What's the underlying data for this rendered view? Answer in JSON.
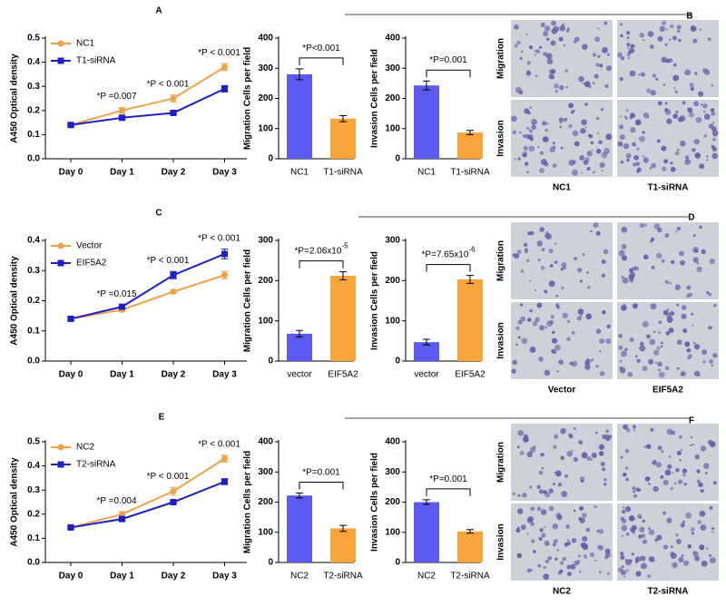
{
  "panel_labels": [
    "A",
    "B",
    "C",
    "D",
    "E",
    "F"
  ],
  "chart_data": [
    {
      "type": "line",
      "ylabel": "A450 Optical density",
      "categories": [
        "Day 0",
        "Day 1",
        "Day 2",
        "Day 3"
      ],
      "ylim": [
        0,
        0.5
      ],
      "yticks": [
        {
          "value": 0,
          "label": "0.0"
        },
        0.1,
        0.2,
        0.3,
        0.4,
        0.5
      ],
      "legend": "upper left",
      "series": [
        {
          "name": "NC1",
          "color": "#f0a24a",
          "marker": "circle",
          "values": [
            0.14,
            0.2,
            0.25,
            0.38
          ],
          "errors": [
            0.006,
            0.012,
            0.014,
            0.014
          ]
        },
        {
          "name": "T1-siRNA",
          "color": "#1f1fc4",
          "marker": "square",
          "values": [
            0.14,
            0.17,
            0.19,
            0.29
          ],
          "errors": [
            0.005,
            0.006,
            0.006,
            0.013
          ]
        }
      ],
      "annotations": [
        {
          "text": "*P =0.007",
          "x": "Day 1"
        },
        {
          "text": "*P < 0.001",
          "x": "Day 2"
        },
        {
          "text": "*P < 0.001",
          "x": "Day 3"
        }
      ]
    },
    {
      "type": "bar",
      "ylabel": "Migration Cells per field",
      "categories": [
        "NC1",
        "T1-siRNA"
      ],
      "colors": [
        "#5b5bf2",
        "#f8a43c"
      ],
      "values": [
        280,
        133
      ],
      "errors": [
        18,
        10
      ],
      "ylim": [
        0,
        400
      ],
      "yticks": [
        0,
        100,
        200,
        300,
        400
      ],
      "annotation": {
        "text": "*P<0.001"
      }
    },
    {
      "type": "bar",
      "ylabel": "Invasion Cells per field",
      "categories": [
        "NC1",
        "T1-siRNA"
      ],
      "colors": [
        "#5b5bf2",
        "#f8a43c"
      ],
      "values": [
        243,
        87
      ],
      "errors": [
        15,
        7
      ],
      "ylim": [
        0,
        400
      ],
      "yticks": [
        0,
        100,
        200,
        300,
        400
      ],
      "annotation": {
        "text": "*P=0.001"
      }
    },
    {
      "type": "line",
      "ylabel": "A450 Optical density",
      "categories": [
        "Day 0",
        "Day 1",
        "Day 2",
        "Day 3"
      ],
      "ylim": [
        0,
        0.4
      ],
      "yticks": [
        {
          "value": 0,
          "label": "0.0"
        },
        0.1,
        0.2,
        0.3,
        0.4
      ],
      "legend": "upper left",
      "series": [
        {
          "name": "Vector",
          "color": "#f0a24a",
          "marker": "circle",
          "values": [
            0.14,
            0.17,
            0.23,
            0.285
          ],
          "errors": [
            0.005,
            0.005,
            0.005,
            0.012
          ]
        },
        {
          "name": "EIF5A2",
          "color": "#1f1fc4",
          "marker": "square",
          "values": [
            0.14,
            0.18,
            0.285,
            0.355
          ],
          "errors": [
            0.005,
            0.006,
            0.012,
            0.016
          ]
        }
      ],
      "annotations": [
        {
          "text": "*P =0.015",
          "x": "Day 1"
        },
        {
          "text": "*P < 0.001",
          "x": "Day 2"
        },
        {
          "text": "*P < 0.001",
          "x": "Day 3"
        }
      ]
    },
    {
      "type": "bar",
      "ylabel": "Migration Cells per field",
      "categories": [
        "vector",
        "EIF5A2"
      ],
      "colors": [
        "#5b5bf2",
        "#f8a43c"
      ],
      "values": [
        68,
        212
      ],
      "errors": [
        8,
        10
      ],
      "ylim": [
        0,
        300
      ],
      "yticks": [
        0,
        100,
        200,
        300
      ],
      "annotation": {
        "text": "*P=2.06x10",
        "superscript": "-5"
      }
    },
    {
      "type": "bar",
      "ylabel": "Invasion Cells per field",
      "categories": [
        "vector",
        "EIF5A2"
      ],
      "colors": [
        "#5b5bf2",
        "#f8a43c"
      ],
      "values": [
        47,
        203
      ],
      "errors": [
        7,
        10
      ],
      "ylim": [
        0,
        300
      ],
      "yticks": [
        0,
        100,
        200,
        300
      ],
      "annotation": {
        "text": "*P=7.65x10",
        "superscript": "-6"
      }
    },
    {
      "type": "line",
      "ylabel": "A450 Optical density",
      "categories": [
        "Day 0",
        "Day 1",
        "Day 2",
        "Day 3"
      ],
      "ylim": [
        0,
        0.5
      ],
      "yticks": [
        {
          "value": 0,
          "label": "0.0"
        },
        0.1,
        0.2,
        0.3,
        0.4,
        0.5
      ],
      "legend": "upper left",
      "series": [
        {
          "name": "NC2",
          "color": "#f0a24a",
          "marker": "circle",
          "values": [
            0.145,
            0.2,
            0.295,
            0.43
          ],
          "errors": [
            0.005,
            0.01,
            0.016,
            0.014
          ]
        },
        {
          "name": "T2-siRNA",
          "color": "#1f1fc4",
          "marker": "square",
          "values": [
            0.145,
            0.18,
            0.25,
            0.335
          ],
          "errors": [
            0.005,
            0.006,
            0.006,
            0.012
          ]
        }
      ],
      "annotations": [
        {
          "text": "*P =0.004",
          "x": "Day 1"
        },
        {
          "text": "*P < 0.001",
          "x": "Day 2"
        },
        {
          "text": "*P < 0.001",
          "x": "Day 3"
        }
      ]
    },
    {
      "type": "bar",
      "ylabel": "Migration Cells per field",
      "categories": [
        "NC2",
        "T2-siRNA"
      ],
      "colors": [
        "#5b5bf2",
        "#f8a43c"
      ],
      "values": [
        222,
        113
      ],
      "errors": [
        8,
        10
      ],
      "ylim": [
        0,
        400
      ],
      "yticks": [
        0,
        100,
        200,
        300,
        400
      ],
      "annotation": {
        "text": "*P=0.001"
      }
    },
    {
      "type": "bar",
      "ylabel": "Invasion Cells per field",
      "categories": [
        "NC2",
        "T2-siRNA"
      ],
      "colors": [
        "#5b5bf2",
        "#f8a43c"
      ],
      "values": [
        200,
        103
      ],
      "errors": [
        8,
        6
      ],
      "ylim": [
        0,
        400
      ],
      "yticks": [
        0,
        100,
        200,
        300,
        400
      ],
      "annotation": {
        "text": "*P=0.001"
      }
    }
  ],
  "images": [
    {
      "rows": [
        "Migration",
        "Invasion"
      ],
      "columns": [
        "NC1",
        "T1-siRNA"
      ]
    },
    {
      "rows": [
        "Migration",
        "Invasion"
      ],
      "columns": [
        "Vector",
        "EIF5A2"
      ]
    },
    {
      "rows": [
        "Migration",
        "Invasion"
      ],
      "columns": [
        "NC2",
        "T2-siRNA"
      ]
    }
  ]
}
